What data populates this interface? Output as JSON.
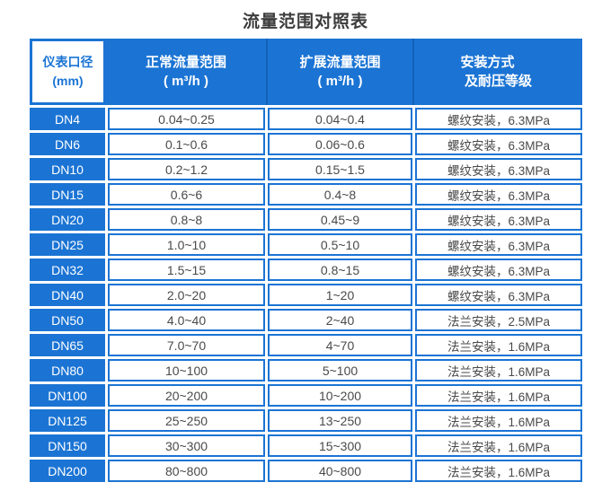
{
  "title": "流量范围对照表",
  "colors": {
    "blue": "#1b74d4",
    "blue_dark_separator": "#1261b8",
    "cell_text": "#4a4a4a",
    "header_text": "#ffffff"
  },
  "table": {
    "header": {
      "diameter": {
        "line1": "仪表口径",
        "line2": "(mm)"
      },
      "normal": {
        "line1": "正常流量范围",
        "line2": "( m³/h )"
      },
      "extended": {
        "line1": "扩展流量范围",
        "line2": "( m³/h )"
      },
      "install": {
        "line1": "安装方式",
        "line2": "及耐压等级"
      }
    },
    "rows": [
      {
        "dn": "DN4",
        "normal": "0.04~0.25",
        "extended": "0.04~0.4",
        "install": "螺纹安装，6.3MPa"
      },
      {
        "dn": "DN6",
        "normal": "0.1~0.6",
        "extended": "0.06~0.6",
        "install": "螺纹安装，6.3MPa"
      },
      {
        "dn": "DN10",
        "normal": "0.2~1.2",
        "extended": "0.15~1.5",
        "install": "螺纹安装，6.3MPa"
      },
      {
        "dn": "DN15",
        "normal": "0.6~6",
        "extended": "0.4~8",
        "install": "螺纹安装，6.3MPa"
      },
      {
        "dn": "DN20",
        "normal": "0.8~8",
        "extended": "0.45~9",
        "install": "螺纹安装，6.3MPa"
      },
      {
        "dn": "DN25",
        "normal": "1.0~10",
        "extended": "0.5~10",
        "install": "螺纹安装，6.3MPa"
      },
      {
        "dn": "DN32",
        "normal": "1.5~15",
        "extended": "0.8~15",
        "install": "螺纹安装，6.3MPa"
      },
      {
        "dn": "DN40",
        "normal": "2.0~20",
        "extended": "1~20",
        "install": "螺纹安装，6.3MPa"
      },
      {
        "dn": "DN50",
        "normal": "4.0~40",
        "extended": "2~40",
        "install": "法兰安装，2.5MPa"
      },
      {
        "dn": "DN65",
        "normal": "7.0~70",
        "extended": "4~70",
        "install": "法兰安装，1.6MPa"
      },
      {
        "dn": "DN80",
        "normal": "10~100",
        "extended": "5~100",
        "install": "法兰安装，1.6MPa"
      },
      {
        "dn": "DN100",
        "normal": "20~200",
        "extended": "10~200",
        "install": "法兰安装，1.6MPa"
      },
      {
        "dn": "DN125",
        "normal": "25~250",
        "extended": "13~250",
        "install": "法兰安装，1.6MPa"
      },
      {
        "dn": "DN150",
        "normal": "30~300",
        "extended": "15~300",
        "install": "法兰安装，1.6MPa"
      },
      {
        "dn": "DN200",
        "normal": "80~800",
        "extended": "40~800",
        "install": "法兰安装，1.6MPa"
      }
    ]
  }
}
